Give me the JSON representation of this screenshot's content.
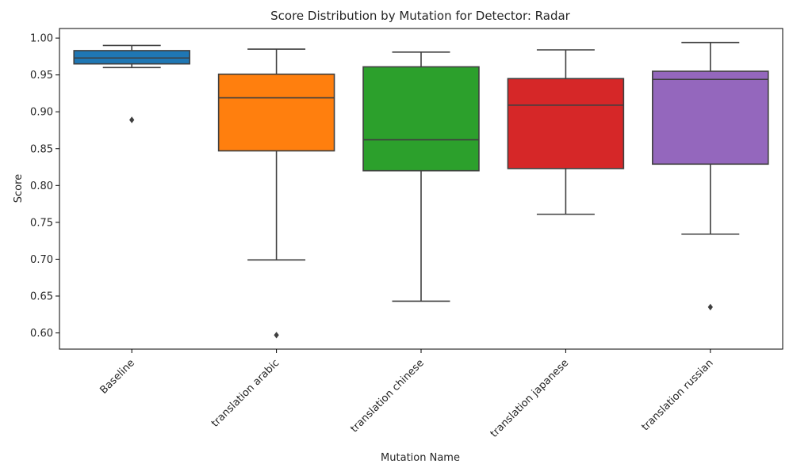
{
  "chart_data": {
    "type": "box",
    "title": "Score Distribution by Mutation for Detector: Radar",
    "xlabel": "Mutation Name",
    "ylabel": "Score",
    "ylim": [
      0.578,
      1.013
    ],
    "yticks": [
      0.6,
      0.65,
      0.7,
      0.75,
      0.8,
      0.85,
      0.9,
      0.95,
      1.0
    ],
    "ytick_labels": [
      "0.60",
      "0.65",
      "0.70",
      "0.75",
      "0.80",
      "0.85",
      "0.90",
      "0.95",
      "1.00"
    ],
    "grid": false,
    "legend": "none",
    "categories": [
      "Baseline",
      "translation arabic",
      "translation chinese",
      "translation japanese",
      "translation russian"
    ],
    "boxes": [
      {
        "label": "Baseline",
        "color": "#1f77b4",
        "whisker_low": 0.96,
        "q1": 0.965,
        "median": 0.973,
        "q3": 0.983,
        "whisker_high": 0.99,
        "outliers": [
          0.889
        ]
      },
      {
        "label": "translation arabic",
        "color": "#ff7f0e",
        "whisker_low": 0.699,
        "q1": 0.847,
        "median": 0.919,
        "q3": 0.951,
        "whisker_high": 0.985,
        "outliers": [
          0.597
        ]
      },
      {
        "label": "translation chinese",
        "color": "#2ca02c",
        "whisker_low": 0.643,
        "q1": 0.82,
        "median": 0.862,
        "q3": 0.961,
        "whisker_high": 0.981,
        "outliers": []
      },
      {
        "label": "translation japanese",
        "color": "#d62728",
        "whisker_low": 0.761,
        "q1": 0.823,
        "median": 0.909,
        "q3": 0.945,
        "whisker_high": 0.984,
        "outliers": []
      },
      {
        "label": "translation russian",
        "color": "#9467bd",
        "whisker_low": 0.734,
        "q1": 0.829,
        "median": 0.944,
        "q3": 0.955,
        "whisker_high": 0.994,
        "outliers": [
          0.635
        ]
      }
    ]
  }
}
